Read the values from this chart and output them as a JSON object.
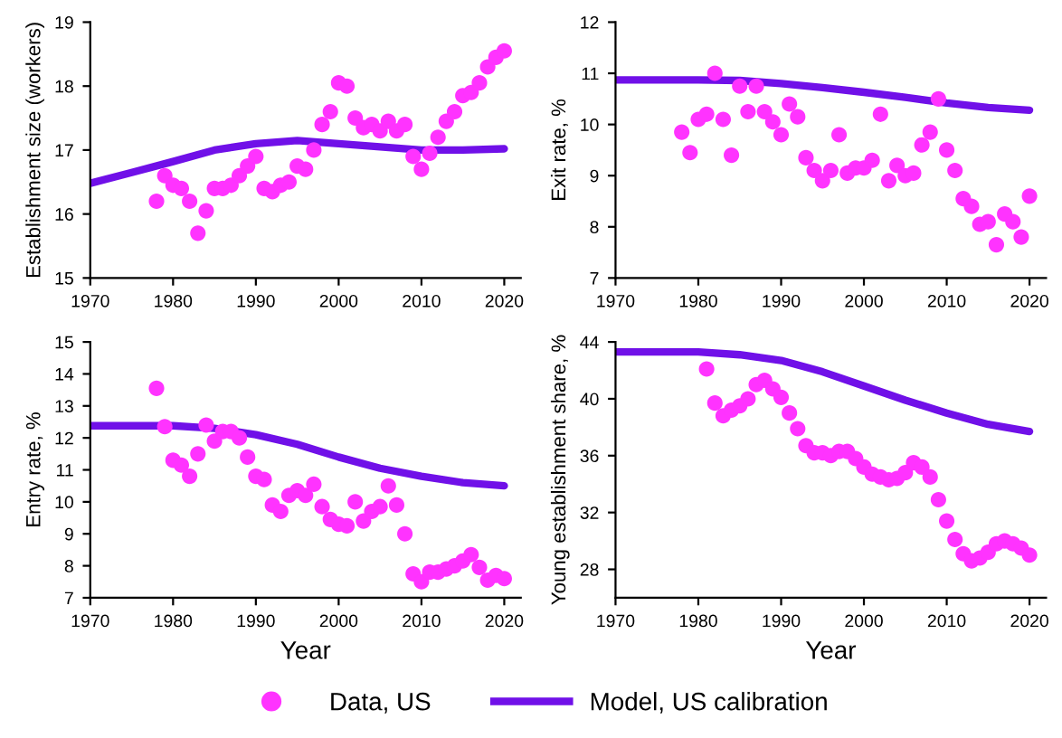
{
  "chart_data": [
    {
      "type": "scatter",
      "ylabel": "Establishment size (workers)",
      "xlim": [
        1970,
        2022
      ],
      "xticks": [
        1970,
        1980,
        1990,
        2000,
        2010,
        2020
      ],
      "ylim": [
        15,
        19
      ],
      "yticks": [
        15,
        16,
        17,
        18,
        19
      ],
      "grid": false,
      "legend": "bottom",
      "series": [
        {
          "name": "Data, US",
          "marker": "circle",
          "color": "#ff33ff",
          "x": [
            1978,
            1979,
            1980,
            1981,
            1982,
            1983,
            1984,
            1985,
            1986,
            1987,
            1988,
            1989,
            1990,
            1991,
            1992,
            1993,
            1994,
            1995,
            1996,
            1997,
            1998,
            1999,
            2000,
            2001,
            2002,
            2003,
            2004,
            2005,
            2006,
            2007,
            2008,
            2009,
            2010,
            2011,
            2012,
            2013,
            2014,
            2015,
            2016,
            2017,
            2018,
            2019,
            2020
          ],
          "values": [
            16.2,
            16.6,
            16.45,
            16.4,
            16.2,
            15.7,
            16.05,
            16.4,
            16.4,
            16.45,
            16.6,
            16.75,
            16.9,
            16.4,
            16.35,
            16.45,
            16.5,
            16.75,
            16.7,
            17.0,
            17.4,
            17.6,
            18.05,
            18.0,
            17.5,
            17.35,
            17.4,
            17.3,
            17.45,
            17.3,
            17.4,
            16.9,
            16.7,
            16.95,
            17.2,
            17.45,
            17.6,
            17.85,
            17.9,
            18.05,
            18.3,
            18.45,
            18.55
          ]
        },
        {
          "name": "Model, US calibration",
          "type": "line",
          "color": "#7010e8",
          "x": [
            1970,
            1975,
            1980,
            1985,
            1990,
            1995,
            2000,
            2005,
            2010,
            2015,
            2020
          ],
          "values": [
            16.48,
            16.65,
            16.82,
            17.0,
            17.1,
            17.15,
            17.1,
            17.05,
            17.0,
            17.0,
            17.02
          ]
        }
      ]
    },
    {
      "type": "scatter",
      "ylabel": "Exit rate, %",
      "xlim": [
        1970,
        2022
      ],
      "xticks": [
        1970,
        1980,
        1990,
        2000,
        2010,
        2020
      ],
      "ylim": [
        7,
        12
      ],
      "yticks": [
        7,
        8,
        9,
        10,
        11,
        12
      ],
      "grid": false,
      "series": [
        {
          "marker": "circle",
          "color": "#ff33ff",
          "x": [
            1978,
            1979,
            1980,
            1981,
            1982,
            1983,
            1984,
            1985,
            1986,
            1987,
            1988,
            1989,
            1990,
            1991,
            1992,
            1993,
            1994,
            1995,
            1996,
            1997,
            1998,
            1999,
            2000,
            2001,
            2002,
            2003,
            2004,
            2005,
            2006,
            2007,
            2008,
            2009,
            2010,
            2011,
            2012,
            2013,
            2014,
            2015,
            2016,
            2017,
            2018,
            2019,
            2020
          ],
          "values": [
            9.85,
            9.45,
            10.1,
            10.2,
            11.0,
            10.1,
            9.4,
            10.75,
            10.25,
            10.75,
            10.25,
            10.05,
            9.8,
            10.4,
            10.15,
            9.35,
            9.1,
            8.9,
            9.1,
            9.8,
            9.05,
            9.15,
            9.15,
            9.3,
            10.2,
            8.9,
            9.2,
            9.0,
            9.05,
            9.6,
            9.85,
            10.5,
            9.5,
            9.1,
            8.55,
            8.4,
            8.05,
            8.1,
            7.65,
            8.25,
            8.1,
            7.8,
            8.6
          ]
        },
        {
          "type": "line",
          "color": "#7010e8",
          "x": [
            1970,
            1980,
            1985,
            1990,
            1995,
            2000,
            2005,
            2010,
            2015,
            2020
          ],
          "values": [
            10.87,
            10.87,
            10.86,
            10.8,
            10.72,
            10.63,
            10.53,
            10.42,
            10.33,
            10.28
          ]
        }
      ]
    },
    {
      "type": "scatter",
      "xlabel": "Year",
      "ylabel": "Entry rate, %",
      "xlim": [
        1970,
        2022
      ],
      "xticks": [
        1970,
        1980,
        1990,
        2000,
        2010,
        2020
      ],
      "ylim": [
        7,
        15
      ],
      "yticks": [
        7,
        8,
        9,
        10,
        11,
        12,
        13,
        14,
        15
      ],
      "grid": false,
      "series": [
        {
          "marker": "circle",
          "color": "#ff33ff",
          "x": [
            1978,
            1979,
            1980,
            1981,
            1982,
            1983,
            1984,
            1985,
            1986,
            1987,
            1988,
            1989,
            1990,
            1991,
            1992,
            1993,
            1994,
            1995,
            1996,
            1997,
            1998,
            1999,
            2000,
            2001,
            2002,
            2003,
            2004,
            2005,
            2006,
            2007,
            2008,
            2009,
            2010,
            2011,
            2012,
            2013,
            2014,
            2015,
            2016,
            2017,
            2018,
            2019,
            2020
          ],
          "values": [
            13.55,
            12.35,
            11.3,
            11.15,
            10.8,
            11.5,
            12.4,
            11.9,
            12.2,
            12.2,
            12.0,
            11.4,
            10.8,
            10.7,
            9.9,
            9.7,
            10.2,
            10.35,
            10.2,
            10.55,
            9.85,
            9.45,
            9.3,
            9.25,
            10.0,
            9.4,
            9.7,
            9.85,
            10.5,
            9.9,
            9.0,
            7.75,
            7.5,
            7.8,
            7.8,
            7.9,
            8.0,
            8.15,
            8.35,
            7.95,
            7.55,
            7.7,
            7.6
          ]
        },
        {
          "type": "line",
          "color": "#7010e8",
          "x": [
            1970,
            1980,
            1985,
            1990,
            1995,
            2000,
            2005,
            2010,
            2015,
            2020
          ],
          "values": [
            12.38,
            12.38,
            12.3,
            12.1,
            11.8,
            11.4,
            11.05,
            10.8,
            10.6,
            10.5
          ]
        }
      ]
    },
    {
      "type": "scatter",
      "xlabel": "Year",
      "ylabel": "Young establishment share, %",
      "xlim": [
        1970,
        2022
      ],
      "xticks": [
        1970,
        1980,
        1990,
        2000,
        2010,
        2020
      ],
      "ylim": [
        26,
        44
      ],
      "yticks": [
        28,
        32,
        36,
        40,
        44
      ],
      "grid": false,
      "series": [
        {
          "marker": "circle",
          "color": "#ff33ff",
          "x": [
            1981,
            1982,
            1983,
            1984,
            1985,
            1986,
            1987,
            1988,
            1989,
            1990,
            1991,
            1992,
            1993,
            1994,
            1995,
            1996,
            1997,
            1998,
            1999,
            2000,
            2001,
            2002,
            2003,
            2004,
            2005,
            2006,
            2007,
            2008,
            2009,
            2010,
            2011,
            2012,
            2013,
            2014,
            2015,
            2016,
            2017,
            2018,
            2019,
            2020
          ],
          "values": [
            42.1,
            39.7,
            38.8,
            39.2,
            39.5,
            40.0,
            41.0,
            41.3,
            40.7,
            40.1,
            39.0,
            37.9,
            36.7,
            36.2,
            36.2,
            36.0,
            36.3,
            36.3,
            35.8,
            35.2,
            34.7,
            34.5,
            34.3,
            34.4,
            34.8,
            35.5,
            35.2,
            34.5,
            32.9,
            31.4,
            30.1,
            29.1,
            28.6,
            28.8,
            29.2,
            29.8,
            30.0,
            29.8,
            29.5,
            29.0
          ]
        },
        {
          "type": "line",
          "color": "#7010e8",
          "x": [
            1970,
            1980,
            1985,
            1990,
            1995,
            2000,
            2005,
            2010,
            2015,
            2020
          ],
          "values": [
            43.3,
            43.3,
            43.1,
            42.7,
            41.9,
            40.9,
            39.9,
            39.0,
            38.2,
            37.7
          ]
        }
      ]
    }
  ]
}
